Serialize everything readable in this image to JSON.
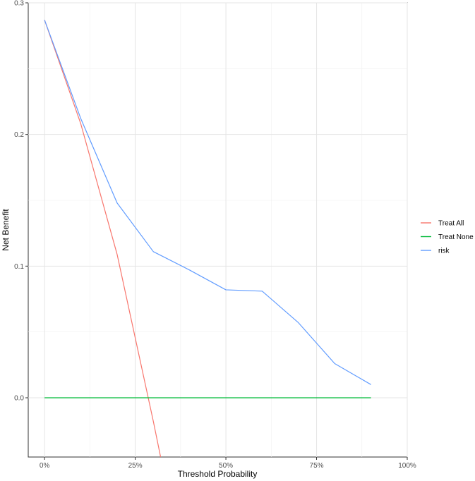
{
  "chart_data": {
    "type": "line",
    "title": "",
    "xlabel": "Threshold Probability",
    "ylabel": "Net Benefit",
    "xlim": [
      -0.045,
      1.0
    ],
    "ylim": [
      -0.045,
      0.3
    ],
    "x_ticks": [
      0,
      0.25,
      0.5,
      0.75,
      1.0
    ],
    "x_tick_labels": [
      "0%",
      "25%",
      "50%",
      "75%",
      "100%"
    ],
    "y_ticks": [
      0.0,
      0.1,
      0.2,
      0.3
    ],
    "y_tick_labels": [
      "0.0",
      "0.1",
      "0.2",
      "0.3"
    ],
    "grid": true,
    "legend_position": "right",
    "series": [
      {
        "name": "Treat All",
        "color": "#F8766D",
        "x": [
          0,
          0.1,
          0.2,
          0.3,
          0.32
        ],
        "y": [
          0.287,
          0.208,
          0.109,
          -0.018,
          -0.045
        ]
      },
      {
        "name": "Treat None",
        "color": "#00BA38",
        "x": [
          0,
          0.9
        ],
        "y": [
          0,
          0
        ]
      },
      {
        "name": "risk",
        "color": "#619CFF",
        "x": [
          0,
          0.1,
          0.2,
          0.3,
          0.4,
          0.5,
          0.6,
          0.7,
          0.8,
          0.9
        ],
        "y": [
          0.287,
          0.212,
          0.148,
          0.111,
          0.097,
          0.082,
          0.081,
          0.057,
          0.026,
          0.01
        ]
      }
    ]
  }
}
